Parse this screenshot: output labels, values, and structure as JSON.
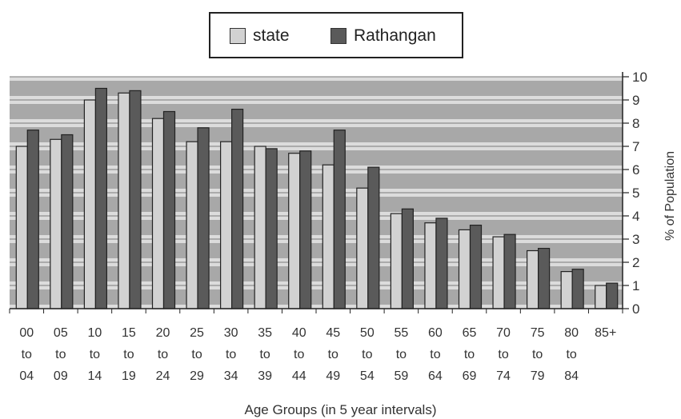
{
  "chart_data": {
    "type": "bar",
    "title": "",
    "xlabel": "Age Groups (in 5 year intervals)",
    "ylabel": "% of Population",
    "ylim": [
      0,
      10
    ],
    "y_ticks": [
      "0",
      "1",
      "2",
      "3",
      "4",
      "5",
      "6",
      "7",
      "8",
      "9",
      "10"
    ],
    "grid": true,
    "legend": "top-center",
    "categories": [
      [
        "00",
        "to",
        "04"
      ],
      [
        "05",
        "to",
        "09"
      ],
      [
        "10",
        "to",
        "14"
      ],
      [
        "15",
        "to",
        "19"
      ],
      [
        "20",
        "to",
        "24"
      ],
      [
        "25",
        "to",
        "29"
      ],
      [
        "30",
        "to",
        "34"
      ],
      [
        "35",
        "to",
        "39"
      ],
      [
        "40",
        "to",
        "44"
      ],
      [
        "45",
        "to",
        "49"
      ],
      [
        "50",
        "to",
        "54"
      ],
      [
        "55",
        "to",
        "59"
      ],
      [
        "60",
        "to",
        "64"
      ],
      [
        "65",
        "to",
        "69"
      ],
      [
        "70",
        "to",
        "74"
      ],
      [
        "75",
        "to",
        "79"
      ],
      [
        "80",
        "to",
        "84"
      ],
      [
        "85+",
        "",
        ""
      ]
    ],
    "series": [
      {
        "name": "state",
        "values": [
          7.0,
          7.3,
          9.0,
          9.3,
          8.2,
          7.2,
          7.2,
          7.0,
          6.7,
          6.2,
          5.2,
          4.1,
          3.7,
          3.4,
          3.1,
          2.5,
          1.6,
          1.0
        ]
      },
      {
        "name": "Rathangan",
        "values": [
          7.7,
          7.5,
          9.5,
          9.4,
          8.5,
          7.8,
          8.6,
          6.9,
          6.8,
          7.7,
          6.1,
          4.3,
          3.9,
          3.6,
          3.2,
          2.6,
          1.7,
          1.1
        ]
      }
    ],
    "colors": {
      "state": "#d2d2d2",
      "Rathangan": "#5a5a5a",
      "plot_band": "#a8a8a8",
      "plot_gap": "#dcdcdc"
    }
  },
  "legend": {
    "state_label": "state",
    "rathangan_label": "Rathangan"
  }
}
